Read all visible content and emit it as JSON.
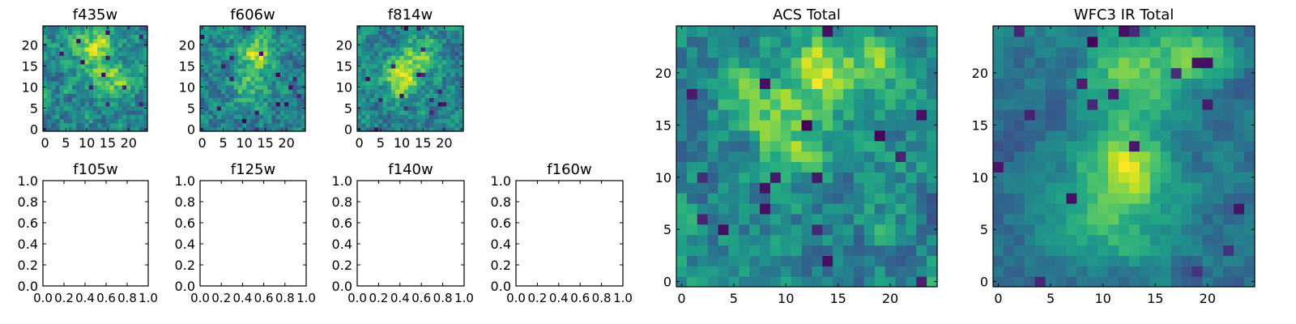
{
  "chart_data": [
    {
      "type": "heatmap",
      "title": "f435w",
      "xlim": [
        -0.5,
        24.5
      ],
      "ylim": [
        -0.5,
        24.5
      ],
      "xticks": [
        0,
        5,
        10,
        15,
        20
      ],
      "yticks": [
        0,
        5,
        10,
        15,
        20
      ],
      "colormap": "viridis",
      "grid_size": [
        25,
        25
      ],
      "seed": 11,
      "smoothness": 0.15,
      "blobs": [
        {
          "x": 12,
          "y": 19,
          "amp": 0.8,
          "r": 3
        },
        {
          "x": 16,
          "y": 12,
          "amp": 0.6,
          "r": 3
        }
      ]
    },
    {
      "type": "heatmap",
      "title": "f606w",
      "xlim": [
        -0.5,
        24.5
      ],
      "ylim": [
        -0.5,
        24.5
      ],
      "xticks": [
        0,
        5,
        10,
        15,
        20
      ],
      "yticks": [
        0,
        5,
        10,
        15,
        20
      ],
      "colormap": "viridis",
      "grid_size": [
        25,
        25
      ],
      "seed": 23,
      "smoothness": 0.15,
      "blobs": [
        {
          "x": 13,
          "y": 18,
          "amp": 0.8,
          "r": 3
        },
        {
          "x": 11,
          "y": 10,
          "amp": 0.5,
          "r": 3
        }
      ]
    },
    {
      "type": "heatmap",
      "title": "f814w",
      "xlim": [
        -0.5,
        24.5
      ],
      "ylim": [
        -0.5,
        24.5
      ],
      "xticks": [
        0,
        5,
        10,
        15,
        20
      ],
      "yticks": [
        0,
        5,
        10,
        15,
        20
      ],
      "colormap": "viridis",
      "grid_size": [
        25,
        25
      ],
      "seed": 37,
      "smoothness": 0.15,
      "blobs": [
        {
          "x": 10,
          "y": 12,
          "amp": 0.9,
          "r": 3
        },
        {
          "x": 14,
          "y": 18,
          "amp": 0.6,
          "r": 3
        }
      ]
    },
    {
      "type": "empty",
      "title": "f105w",
      "xlim": [
        0,
        1
      ],
      "ylim": [
        0,
        1
      ],
      "xticks": [
        "0.0",
        "0.2",
        "0.4",
        "0.6",
        "0.8",
        "1.0"
      ],
      "yticks": [
        "0.0",
        "0.2",
        "0.4",
        "0.6",
        "0.8",
        "1.0"
      ]
    },
    {
      "type": "empty",
      "title": "f125w",
      "xlim": [
        0,
        1
      ],
      "ylim": [
        0,
        1
      ],
      "xticks": [
        "0.0",
        "0.2",
        "0.4",
        "0.6",
        "0.8",
        "1.0"
      ],
      "yticks": [
        "0.0",
        "0.2",
        "0.4",
        "0.6",
        "0.8",
        "1.0"
      ]
    },
    {
      "type": "empty",
      "title": "f140w",
      "xlim": [
        0,
        1
      ],
      "ylim": [
        0,
        1
      ],
      "xticks": [
        "0.0",
        "0.2",
        "0.4",
        "0.6",
        "0.8",
        "1.0"
      ],
      "yticks": [
        "0.0",
        "0.2",
        "0.4",
        "0.6",
        "0.8",
        "1.0"
      ]
    },
    {
      "type": "empty",
      "title": "f160w",
      "xlim": [
        0,
        1
      ],
      "ylim": [
        0,
        1
      ],
      "xticks": [
        "0.0",
        "0.2",
        "0.4",
        "0.6",
        "0.8",
        "1.0"
      ],
      "yticks": [
        "0.0",
        "0.2",
        "0.4",
        "0.6",
        "0.8",
        "1.0"
      ]
    },
    {
      "type": "heatmap",
      "title": "ACS Total",
      "xlim": [
        -0.5,
        24.5
      ],
      "ylim": [
        -0.5,
        24.5
      ],
      "xticks": [
        0,
        5,
        10,
        15,
        20
      ],
      "yticks": [
        0,
        5,
        10,
        15,
        20
      ],
      "colormap": "viridis",
      "grid_size": [
        25,
        25
      ],
      "seed": 51,
      "smoothness": 0.35,
      "blobs": [
        {
          "x": 13,
          "y": 20,
          "amp": 0.9,
          "r": 2.5
        },
        {
          "x": 11,
          "y": 13,
          "amp": 0.6,
          "r": 2.5
        },
        {
          "x": 6,
          "y": 17,
          "amp": 0.5,
          "r": 2
        },
        {
          "x": 19,
          "y": 21,
          "amp": 0.5,
          "r": 2
        }
      ]
    },
    {
      "type": "heatmap",
      "title": "WFC3 IR Total",
      "xlim": [
        -0.5,
        24.5
      ],
      "ylim": [
        -0.5,
        24.5
      ],
      "xticks": [
        0,
        5,
        10,
        15,
        20
      ],
      "yticks": [
        0,
        5,
        10,
        15,
        20
      ],
      "colormap": "viridis",
      "grid_size": [
        25,
        25
      ],
      "seed": 67,
      "smoothness": 0.6,
      "blobs": [
        {
          "x": 12,
          "y": 11,
          "amp": 1.0,
          "r": 3
        },
        {
          "x": 13,
          "y": 20,
          "amp": 0.8,
          "r": 3
        },
        {
          "x": 19,
          "y": 22,
          "amp": 0.7,
          "r": 2
        },
        {
          "x": 11,
          "y": 5,
          "amp": 0.5,
          "r": 3
        }
      ]
    }
  ]
}
